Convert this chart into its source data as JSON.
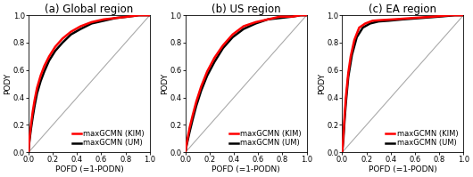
{
  "titles": [
    "(a) Global region",
    "(b) US region",
    "(c) EA region"
  ],
  "xlabel": "POFD (=1-PODN)",
  "ylabel": "PODY",
  "xlim": [
    0.0,
    1.0
  ],
  "ylim": [
    0.0,
    1.0
  ],
  "xticks": [
    0.0,
    0.2,
    0.4,
    0.6,
    0.8,
    1.0
  ],
  "yticks": [
    0.0,
    0.2,
    0.4,
    0.6,
    0.8,
    1.0
  ],
  "legend_labels": [
    "maxGCMN (KIM)",
    "maxGCMN (UM)"
  ],
  "kim_color": "#ff0000",
  "um_color": "#000000",
  "diag_color": "#aaaaaa",
  "kim_linewidth": 1.8,
  "um_linewidth": 1.8,
  "diag_linewidth": 0.8,
  "background_color": "#ffffff",
  "title_fontsize": 8.5,
  "label_fontsize": 6.5,
  "tick_fontsize": 6.0,
  "legend_fontsize": 6.0,
  "global_kim_x": [
    0.0,
    0.005,
    0.01,
    0.02,
    0.035,
    0.05,
    0.07,
    0.1,
    0.13,
    0.17,
    0.22,
    0.28,
    0.35,
    0.43,
    0.52,
    0.62,
    0.72,
    0.82,
    0.91,
    1.0
  ],
  "global_kim_y": [
    0.0,
    0.07,
    0.12,
    0.2,
    0.3,
    0.38,
    0.47,
    0.56,
    0.63,
    0.7,
    0.77,
    0.83,
    0.88,
    0.92,
    0.95,
    0.97,
    0.98,
    0.99,
    1.0,
    1.0
  ],
  "global_um_x": [
    0.0,
    0.005,
    0.01,
    0.02,
    0.035,
    0.05,
    0.07,
    0.1,
    0.13,
    0.17,
    0.22,
    0.28,
    0.35,
    0.43,
    0.52,
    0.62,
    0.72,
    0.82,
    0.91,
    1.0
  ],
  "global_um_y": [
    0.0,
    0.06,
    0.1,
    0.17,
    0.26,
    0.34,
    0.43,
    0.52,
    0.59,
    0.67,
    0.74,
    0.8,
    0.86,
    0.9,
    0.94,
    0.96,
    0.98,
    0.99,
    1.0,
    1.0
  ],
  "us_kim_x": [
    0.0,
    0.005,
    0.01,
    0.02,
    0.035,
    0.06,
    0.09,
    0.13,
    0.18,
    0.24,
    0.31,
    0.39,
    0.48,
    0.58,
    0.68,
    0.78,
    0.88,
    0.95,
    1.0
  ],
  "us_kim_y": [
    0.0,
    0.03,
    0.06,
    0.11,
    0.18,
    0.27,
    0.37,
    0.48,
    0.59,
    0.69,
    0.78,
    0.86,
    0.92,
    0.95,
    0.97,
    0.99,
    0.99,
    1.0,
    1.0
  ],
  "us_um_x": [
    0.0,
    0.005,
    0.01,
    0.02,
    0.035,
    0.06,
    0.09,
    0.13,
    0.18,
    0.24,
    0.31,
    0.39,
    0.48,
    0.58,
    0.68,
    0.78,
    0.88,
    0.95,
    1.0
  ],
  "us_um_y": [
    0.0,
    0.025,
    0.05,
    0.09,
    0.15,
    0.24,
    0.34,
    0.45,
    0.56,
    0.66,
    0.76,
    0.84,
    0.9,
    0.94,
    0.97,
    0.98,
    0.99,
    1.0,
    1.0
  ],
  "ea_kim_x": [
    0.0,
    0.005,
    0.01,
    0.015,
    0.02,
    0.03,
    0.05,
    0.07,
    0.1,
    0.14,
    0.19,
    0.25,
    0.32,
    0.42,
    0.58,
    0.75,
    0.9,
    1.0
  ],
  "ea_kim_y": [
    0.0,
    0.06,
    0.13,
    0.2,
    0.28,
    0.4,
    0.58,
    0.7,
    0.82,
    0.91,
    0.94,
    0.96,
    0.965,
    0.97,
    0.98,
    0.99,
    1.0,
    1.0
  ],
  "ea_um_x": [
    0.0,
    0.005,
    0.01,
    0.015,
    0.02,
    0.03,
    0.05,
    0.08,
    0.12,
    0.17,
    0.23,
    0.3,
    0.38,
    0.5,
    0.65,
    0.8,
    0.93,
    1.0
  ],
  "ea_um_y": [
    0.0,
    0.05,
    0.1,
    0.17,
    0.24,
    0.36,
    0.55,
    0.71,
    0.84,
    0.91,
    0.94,
    0.955,
    0.96,
    0.97,
    0.98,
    0.99,
    1.0,
    1.0
  ]
}
